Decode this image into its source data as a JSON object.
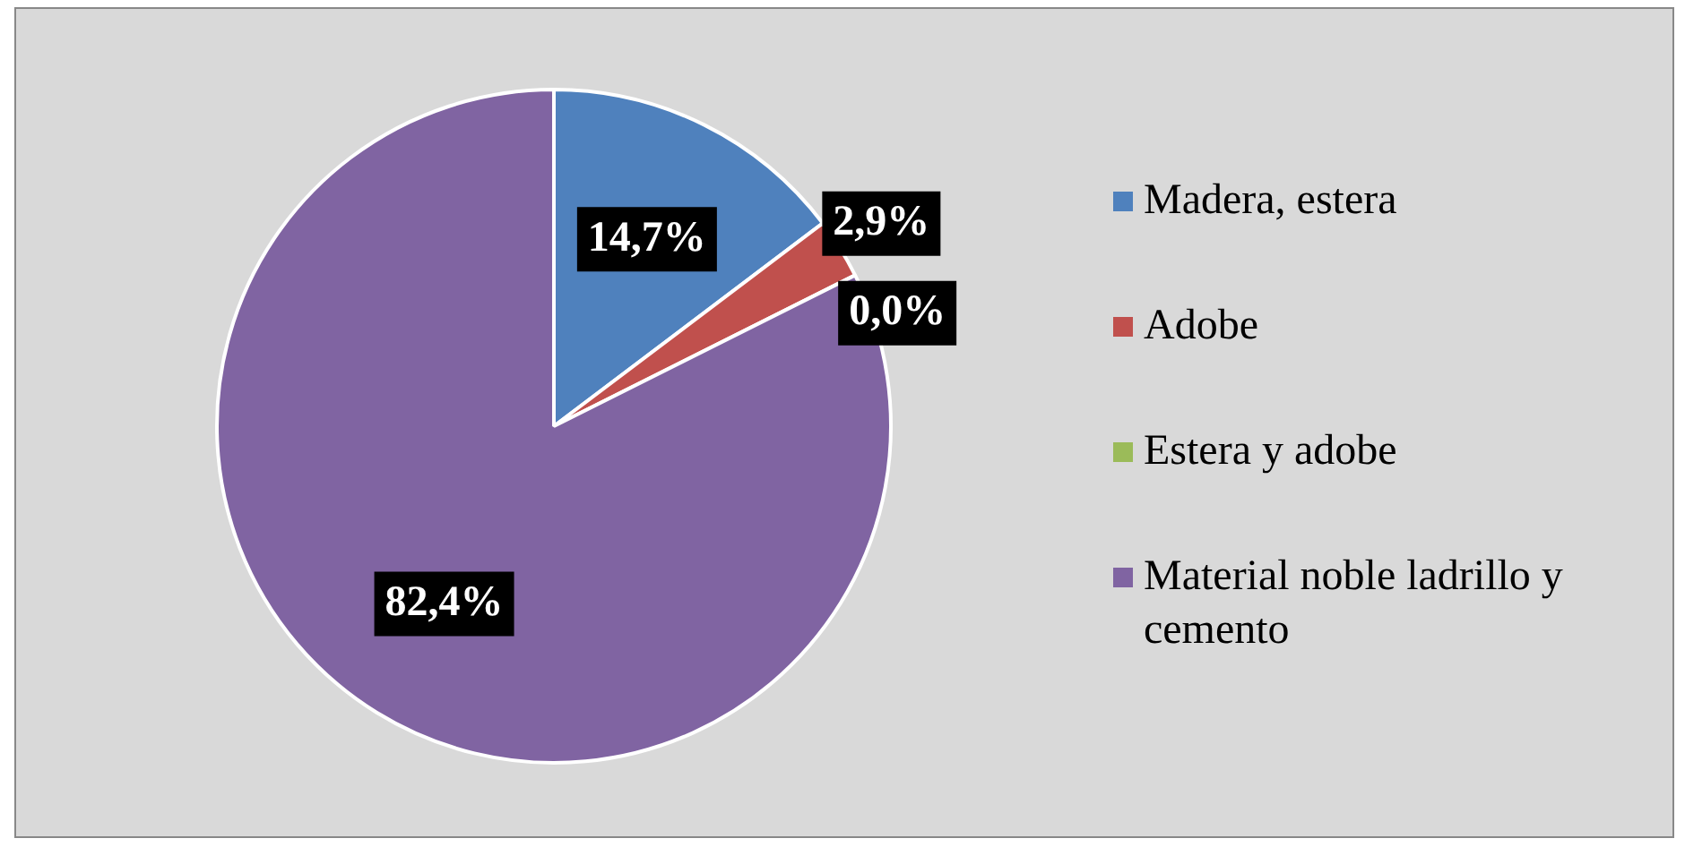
{
  "chart_data": {
    "type": "pie",
    "categories": [
      "Madera, estera",
      "Adobe",
      "Estera y adobe",
      "Material noble ladrillo y cemento"
    ],
    "values": [
      14.7,
      2.9,
      0.0,
      82.4
    ],
    "colors": [
      "#4f81bd",
      "#c0504d",
      "#9bbb59",
      "#8064a2"
    ],
    "value_labels": [
      "14,7%",
      "2,9%",
      "0,0%",
      "82,4%"
    ],
    "legend": "right"
  }
}
